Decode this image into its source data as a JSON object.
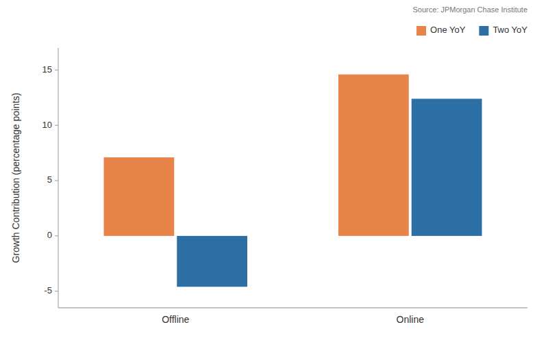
{
  "chart_data": {
    "type": "bar",
    "categories": [
      "Offline",
      "Online"
    ],
    "series": [
      {
        "name": "One YoY",
        "color": "#E8834A",
        "values": [
          7.1,
          14.6
        ]
      },
      {
        "name": "Two YoY",
        "color": "#2C6FA4",
        "values": [
          -4.6,
          12.4
        ]
      }
    ],
    "ylabel": "Growth Contribution (percentage points)",
    "ylim": [
      -6.5,
      17
    ],
    "yticks": [
      -5,
      0,
      5,
      10,
      15
    ],
    "grid": false,
    "legend": "upper right",
    "annotations": [
      "Source: JPMorgan Chase Institute"
    ]
  }
}
